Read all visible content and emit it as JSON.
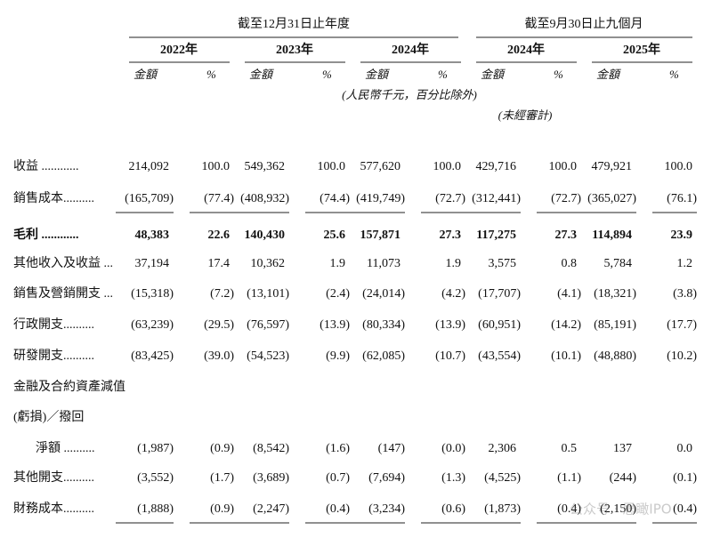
{
  "header": {
    "groups": [
      "截至12月31日止年度",
      "截至9月30日止九個月"
    ],
    "years": [
      "2022年",
      "2023年",
      "2024年",
      "2024年",
      "2025年"
    ],
    "amount_label": "金額",
    "percent_label": "%",
    "unit_note": "(人民幣千元，百分比除外)",
    "unaudited_note": "(未經審計)"
  },
  "table": {
    "rows": [
      {
        "label": "收益 ............",
        "values": [
          "214,092",
          "100.0",
          "549,362",
          "100.0",
          "577,620",
          "100.0",
          "429,716",
          "100.0",
          "479,921",
          "100.0"
        ]
      },
      {
        "label": "銷售成本..........",
        "values": [
          "(165,709)",
          "(77.4)",
          "(408,932)",
          "(74.4)",
          "(419,749)",
          "(72.7)",
          "(312,441)",
          "(72.7)",
          "(365,027)",
          "(76.1)"
        ]
      },
      {
        "label": "毛利 ............",
        "values": [
          "48,383",
          "22.6",
          "140,430",
          "25.6",
          "157,871",
          "27.3",
          "117,275",
          "27.3",
          "114,894",
          "23.9"
        ],
        "bold": true
      },
      {
        "label": "其他收入及收益 ...",
        "values": [
          "37,194",
          "17.4",
          "10,362",
          "1.9",
          "11,073",
          "1.9",
          "3,575",
          "0.8",
          "5,784",
          "1.2"
        ]
      },
      {
        "label": "銷售及營銷開支 ...",
        "values": [
          "(15,318)",
          "(7.2)",
          "(13,101)",
          "(2.4)",
          "(24,014)",
          "(4.2)",
          "(17,707)",
          "(4.1)",
          "(18,321)",
          "(3.8)"
        ]
      },
      {
        "label": "行政開支..........",
        "values": [
          "(63,239)",
          "(29.5)",
          "(76,597)",
          "(13.9)",
          "(80,334)",
          "(13.9)",
          "(60,951)",
          "(14.2)",
          "(85,191)",
          "(17.7)"
        ]
      },
      {
        "label": "研發開支..........",
        "values": [
          "(83,425)",
          "(39.0)",
          "(54,523)",
          "(9.9)",
          "(62,085)",
          "(10.7)",
          "(43,554)",
          "(10.1)",
          "(48,880)",
          "(10.2)"
        ]
      },
      {
        "label": "金融及合約資產減值"
      },
      {
        "label": "(虧損)／撥回"
      },
      {
        "label": "淨額 ..........",
        "values": [
          "(1,987)",
          "(0.9)",
          "(8,542)",
          "(1.6)",
          "(147)",
          "(0.0)",
          "2,306",
          "0.5",
          "137",
          "0.0"
        ],
        "indent": true
      },
      {
        "label": "其他開支..........",
        "values": [
          "(3,552)",
          "(1.7)",
          "(3,689)",
          "(0.7)",
          "(7,694)",
          "(1.3)",
          "(4,525)",
          "(1.1)",
          "(244)",
          "(0.1)"
        ]
      },
      {
        "label": "財務成本..........",
        "values": [
          "(1,888)",
          "(0.9)",
          "(2,247)",
          "(0.4)",
          "(3,234)",
          "(0.6)",
          "(1,873)",
          "(0.4)",
          "(2,150)",
          "(0.4)"
        ]
      }
    ]
  },
  "watermark": "公众号 · 思瞰IPO"
}
